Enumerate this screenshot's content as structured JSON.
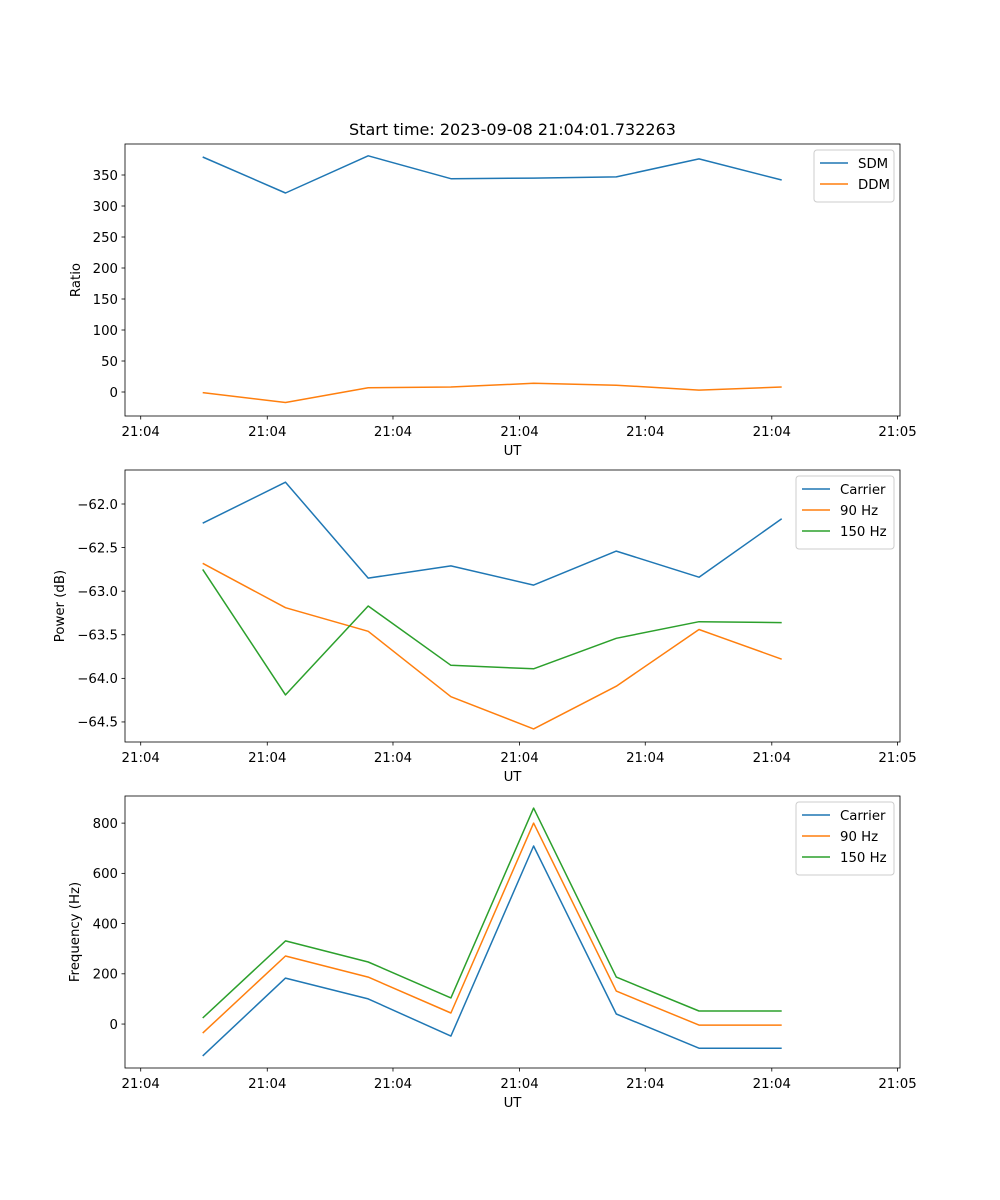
{
  "chart_data": [
    {
      "type": "line",
      "title": "Start time: 2023-09-08 21:04:01.732263",
      "xlabel": "UT",
      "ylabel": "Ratio",
      "x": [
        0,
        1,
        2,
        3,
        4,
        5,
        6,
        7
      ],
      "xlim": [
        -0.94,
        8.43
      ],
      "x_ticks": [
        -0.75,
        0.78,
        2.3,
        3.83,
        5.35,
        6.88,
        8.4
      ],
      "x_tick_labels": [
        "21:04",
        "21:04",
        "21:04",
        "21:04",
        "21:04",
        "21:04",
        "21:05"
      ],
      "ylim": [
        -38.7,
        400
      ],
      "y_ticks": [
        0,
        50,
        100,
        150,
        200,
        250,
        300,
        350
      ],
      "y_tick_labels": [
        "0",
        "50",
        "100",
        "150",
        "200",
        "250",
        "300",
        "350"
      ],
      "legend_position": "top-right",
      "grid": false,
      "series": [
        {
          "name": "SDM",
          "color": "#1f77b4",
          "values": [
            379,
            321,
            381,
            344,
            345,
            347,
            376,
            342
          ]
        },
        {
          "name": "DDM",
          "color": "#ff7f0e",
          "values": [
            -1,
            -17,
            7,
            8,
            14,
            11,
            3,
            8
          ]
        }
      ]
    },
    {
      "type": "line",
      "title": "",
      "xlabel": "UT",
      "ylabel": "Power (dB)",
      "x": [
        0,
        1,
        2,
        3,
        4,
        5,
        6,
        7
      ],
      "xlim": [
        -0.94,
        8.43
      ],
      "x_ticks": [
        -0.75,
        0.78,
        2.3,
        3.83,
        5.35,
        6.88,
        8.4
      ],
      "x_tick_labels": [
        "21:04",
        "21:04",
        "21:04",
        "21:04",
        "21:04",
        "21:04",
        "21:05"
      ],
      "ylim": [
        -64.73,
        -61.61
      ],
      "y_ticks": [
        -62.0,
        -62.5,
        -63.0,
        -63.5,
        -64.0,
        -64.5
      ],
      "y_tick_labels": [
        "−62.0",
        "−62.5",
        "−63.0",
        "−63.5",
        "−64.0",
        "−64.5"
      ],
      "legend_position": "top-right",
      "grid": false,
      "series": [
        {
          "name": "Carrier",
          "color": "#1f77b4",
          "values": [
            -62.22,
            -61.75,
            -62.85,
            -62.71,
            -62.93,
            -62.54,
            -62.84,
            -62.17
          ]
        },
        {
          "name": "90 Hz",
          "color": "#ff7f0e",
          "values": [
            -62.68,
            -63.19,
            -63.46,
            -64.21,
            -64.58,
            -64.09,
            -63.44,
            -63.78
          ]
        },
        {
          "name": "150 Hz",
          "color": "#2ca02c",
          "values": [
            -62.75,
            -64.19,
            -63.17,
            -63.85,
            -63.89,
            -63.54,
            -63.35,
            -63.36
          ]
        }
      ]
    },
    {
      "type": "line",
      "title": "",
      "xlabel": "UT",
      "ylabel": "Frequency (Hz)",
      "x": [
        0,
        1,
        2,
        3,
        4,
        5,
        6,
        7
      ],
      "xlim": [
        -0.94,
        8.43
      ],
      "x_ticks": [
        -0.75,
        0.78,
        2.3,
        3.83,
        5.35,
        6.88,
        8.4
      ],
      "x_tick_labels": [
        "21:04",
        "21:04",
        "21:04",
        "21:04",
        "21:04",
        "21:04",
        "21:05"
      ],
      "ylim": [
        -175,
        908
      ],
      "y_ticks": [
        0,
        200,
        400,
        600,
        800
      ],
      "y_tick_labels": [
        "0",
        "200",
        "400",
        "600",
        "800"
      ],
      "legend_position": "top-right",
      "grid": false,
      "series": [
        {
          "name": "Carrier",
          "color": "#1f77b4",
          "values": [
            -127,
            183,
            100,
            -48,
            709,
            40,
            -96,
            -96
          ]
        },
        {
          "name": "90 Hz",
          "color": "#ff7f0e",
          "values": [
            -36,
            271,
            187,
            44,
            800,
            131,
            -4,
            -4
          ]
        },
        {
          "name": "150 Hz",
          "color": "#2ca02c",
          "values": [
            24,
            331,
            247,
            104,
            860,
            187,
            52,
            52
          ]
        }
      ]
    }
  ]
}
